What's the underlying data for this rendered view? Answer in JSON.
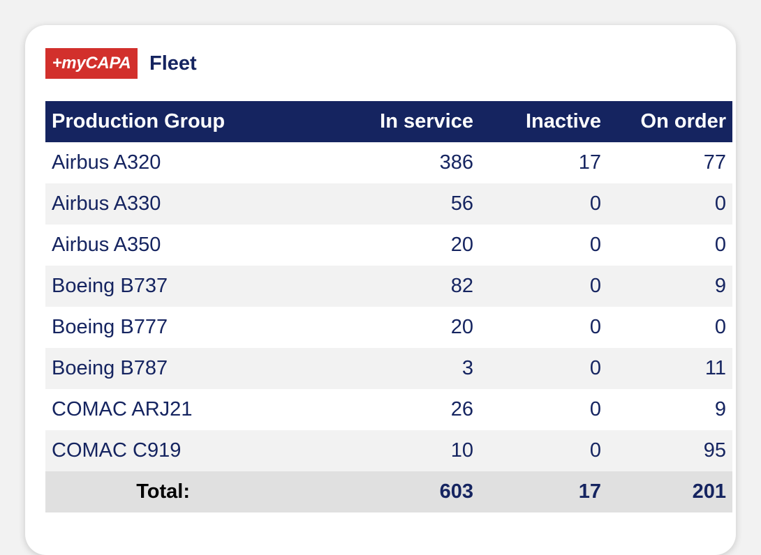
{
  "header": {
    "logo_text": "+myCAPA",
    "title": "Fleet"
  },
  "table": {
    "columns": [
      "Production Group",
      "In service",
      "Inactive",
      "On order"
    ],
    "rows": [
      {
        "group": "Airbus A320",
        "in_service": "386",
        "inactive": "17",
        "on_order": "77"
      },
      {
        "group": "Airbus A330",
        "in_service": "56",
        "inactive": "0",
        "on_order": "0"
      },
      {
        "group": "Airbus A350",
        "in_service": "20",
        "inactive": "0",
        "on_order": "0"
      },
      {
        "group": "Boeing B737",
        "in_service": "82",
        "inactive": "0",
        "on_order": "9"
      },
      {
        "group": "Boeing B777",
        "in_service": "20",
        "inactive": "0",
        "on_order": "0"
      },
      {
        "group": "Boeing B787",
        "in_service": "3",
        "inactive": "0",
        "on_order": "11"
      },
      {
        "group": "COMAC ARJ21",
        "in_service": "26",
        "inactive": "0",
        "on_order": "9"
      },
      {
        "group": "COMAC C919",
        "in_service": "10",
        "inactive": "0",
        "on_order": "95"
      }
    ],
    "total": {
      "label": "Total:",
      "in_service": "603",
      "inactive": "17",
      "on_order": "201"
    }
  },
  "colors": {
    "header_navy": "#152460",
    "logo_red": "#d2302c",
    "row_alt": "#f2f2f2",
    "total_row": "#e0e0e0"
  }
}
